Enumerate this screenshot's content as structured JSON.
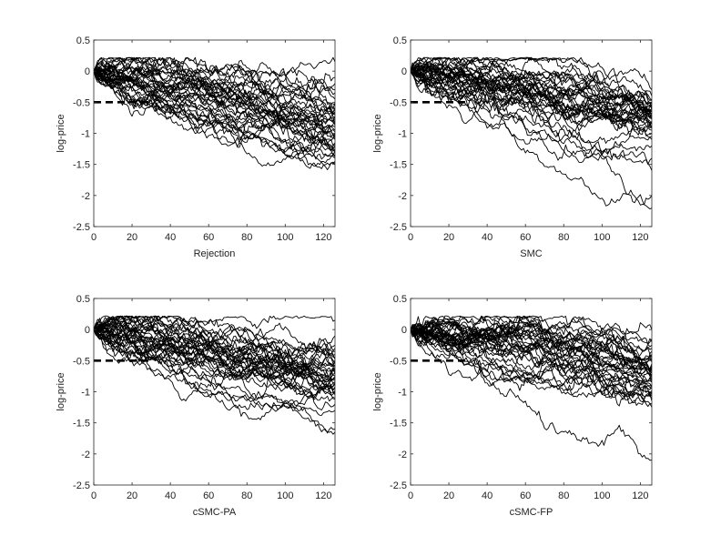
{
  "chart_data": [
    {
      "type": "line",
      "title": "",
      "xlabel": "Rejection",
      "ylabel": "log-price",
      "xlim": [
        0,
        126
      ],
      "ylim": [
        -2.5,
        0.5
      ],
      "xticks": [
        0,
        20,
        40,
        60,
        80,
        100,
        120
      ],
      "yticks": [
        0.5,
        0,
        -0.5,
        -1,
        -1.5,
        -2,
        -2.5
      ],
      "xtick_labels": [
        "0",
        "20",
        "40",
        "60",
        "80",
        "100",
        "120"
      ],
      "ytick_labels": [
        "0.5",
        "0",
        "-0.5",
        "-1",
        "-1.5",
        "-2",
        "-2.5"
      ],
      "threshold": {
        "y": -0.5,
        "x": [
          0,
          30
        ],
        "style": "dashed"
      },
      "num_paths": 40,
      "path_endpoints": [
        0.15,
        -0.2,
        -0.35,
        -0.5,
        -0.55,
        -0.6,
        -0.65,
        -0.7,
        -0.75,
        -0.8,
        -0.85,
        -0.9,
        -0.95,
        -1.0,
        -1.05,
        -1.1,
        -1.15,
        -1.2,
        -1.25,
        -1.3,
        -1.35,
        -1.4,
        -1.45,
        -1.5,
        -0.3,
        -0.45,
        -0.62,
        -0.72,
        -0.88,
        -0.98,
        -1.08,
        -1.18,
        -1.28,
        -1.38,
        -0.58,
        -0.68,
        -0.78,
        -1.0,
        -1.22,
        -0.1
      ],
      "grid": false
    },
    {
      "type": "line",
      "title": "",
      "xlabel": "SMC",
      "ylabel": "log-price",
      "xlim": [
        0,
        126
      ],
      "ylim": [
        -2.5,
        0.5
      ],
      "xticks": [
        0,
        20,
        40,
        60,
        80,
        100,
        120
      ],
      "yticks": [
        0.5,
        0,
        -0.5,
        -1,
        -1.5,
        -2,
        -2.5
      ],
      "xtick_labels": [
        "0",
        "20",
        "40",
        "60",
        "80",
        "100",
        "120"
      ],
      "ytick_labels": [
        "0.5",
        "0",
        "-0.5",
        "-1",
        "-1.5",
        "-2",
        "-2.5"
      ],
      "threshold": {
        "y": -0.5,
        "x": [
          0,
          30
        ],
        "style": "dashed"
      },
      "num_paths": 40,
      "path_endpoints": [
        -0.3,
        -0.4,
        -0.45,
        -0.5,
        -0.55,
        -0.6,
        -0.62,
        -0.65,
        -0.68,
        -0.7,
        -0.72,
        -0.75,
        -0.78,
        -0.8,
        -0.85,
        -0.9,
        -0.95,
        -1.0,
        -1.1,
        -1.2,
        -1.4,
        -1.6,
        -2.0,
        -2.2,
        -0.52,
        -0.58,
        -0.66,
        -0.74,
        -0.82,
        -0.88,
        -0.48,
        -0.56,
        -0.64,
        -0.7,
        -0.76,
        -0.84,
        -0.92,
        -1.05,
        -0.6,
        -0.71
      ],
      "grid": false
    },
    {
      "type": "line",
      "title": "",
      "xlabel": "cSMC-PA",
      "ylabel": "log-price",
      "xlim": [
        0,
        126
      ],
      "ylim": [
        -2.5,
        0.5
      ],
      "xticks": [
        0,
        20,
        40,
        60,
        80,
        100,
        120
      ],
      "yticks": [
        0.5,
        0,
        -0.5,
        -1,
        -1.5,
        -2,
        -2.5
      ],
      "xtick_labels": [
        "0",
        "20",
        "40",
        "60",
        "80",
        "100",
        "120"
      ],
      "ytick_labels": [
        "0.5",
        "0",
        "-0.5",
        "-1",
        "-1.5",
        "-2",
        "-2.5"
      ],
      "threshold": {
        "y": -0.5,
        "x": [
          0,
          30
        ],
        "style": "dashed"
      },
      "num_paths": 40,
      "path_endpoints": [
        0.15,
        -0.1,
        -0.25,
        -0.35,
        -0.45,
        -0.5,
        -0.55,
        -0.6,
        -0.65,
        -0.7,
        -0.75,
        -0.8,
        -0.85,
        -0.9,
        -0.95,
        -1.0,
        -1.05,
        -1.1,
        -1.2,
        -1.3,
        -1.6,
        -1.65,
        -0.4,
        -0.52,
        -0.62,
        -0.72,
        -0.82,
        -0.92,
        -1.02,
        -0.58,
        -0.68,
        -0.78,
        -0.88,
        -0.98,
        -1.12,
        -0.48,
        -0.66,
        -0.74,
        -0.84,
        -0.3
      ],
      "grid": false
    },
    {
      "type": "line",
      "title": "",
      "xlabel": "cSMC-FP",
      "ylabel": "log-price",
      "xlim": [
        0,
        126
      ],
      "ylim": [
        -2.5,
        0.5
      ],
      "xticks": [
        0,
        20,
        40,
        60,
        80,
        100,
        120
      ],
      "yticks": [
        0.5,
        0,
        -0.5,
        -1,
        -1.5,
        -2,
        -2.5
      ],
      "xtick_labels": [
        "0",
        "20",
        "40",
        "60",
        "80",
        "100",
        "120"
      ],
      "ytick_labels": [
        "0.5",
        "0",
        "-0.5",
        "-1",
        "-1.5",
        "-2",
        "-2.5"
      ],
      "threshold": {
        "y": -0.5,
        "x": [
          0,
          30
        ],
        "style": "dashed"
      },
      "num_paths": 40,
      "path_endpoints": [
        0.0,
        -0.15,
        -0.25,
        -0.35,
        -0.45,
        -0.5,
        -0.55,
        -0.6,
        -0.65,
        -0.7,
        -0.75,
        -0.8,
        -0.85,
        -0.9,
        -0.95,
        -1.0,
        -1.05,
        -1.1,
        -1.2,
        -2.1,
        -0.4,
        -0.52,
        -0.62,
        -0.72,
        -0.82,
        -0.92,
        -1.02,
        -0.58,
        -0.68,
        -0.78,
        -0.88,
        -0.98,
        -1.15,
        -0.48,
        -0.66,
        -0.74,
        -0.84,
        -0.3,
        -0.2,
        -1.25
      ],
      "grid": false
    }
  ]
}
